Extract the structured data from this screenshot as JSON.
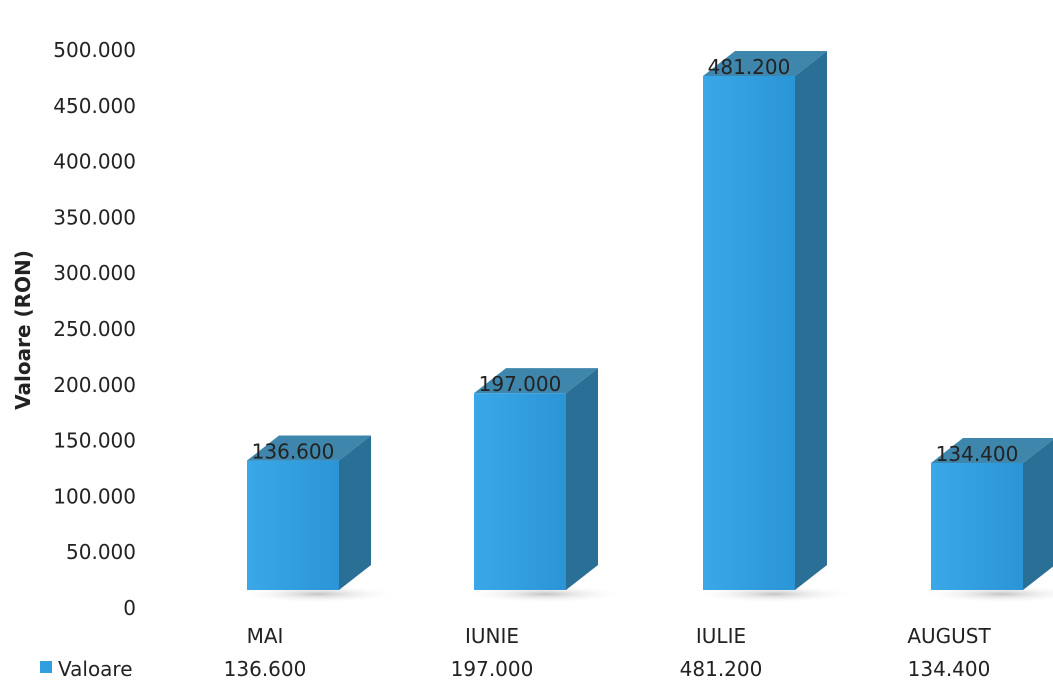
{
  "chart_data": {
    "type": "bar",
    "title": "",
    "xlabel": "",
    "ylabel": "Valoare (RON)",
    "categories": [
      "MAI",
      "IUNIE",
      "IULIE",
      "AUGUST"
    ],
    "series": [
      {
        "name": "Valoare",
        "values": [
          136600,
          197000,
          481200,
          134400
        ],
        "value_labels": [
          "136.600",
          "197.000",
          "481.200",
          "134.400"
        ]
      }
    ],
    "ylim": [
      0,
      500000
    ],
    "y_ticks": [
      0,
      50000,
      100000,
      150000,
      200000,
      250000,
      300000,
      350000,
      400000,
      450000,
      500000
    ],
    "y_tick_labels": [
      "0",
      "50.000",
      "100.000",
      "150.000",
      "200.000",
      "250.000",
      "300.000",
      "350.000",
      "400.000",
      "450.000",
      "500.000"
    ],
    "grid": false,
    "legend_placement": "bottom-left (data table)",
    "bar_style": "3d-column",
    "colors": {
      "bar_front": "#2f9fe0",
      "bar_top": "#3f86ad",
      "bar_side": "#2a6f95",
      "legend_key": "#2f9fe0"
    }
  }
}
